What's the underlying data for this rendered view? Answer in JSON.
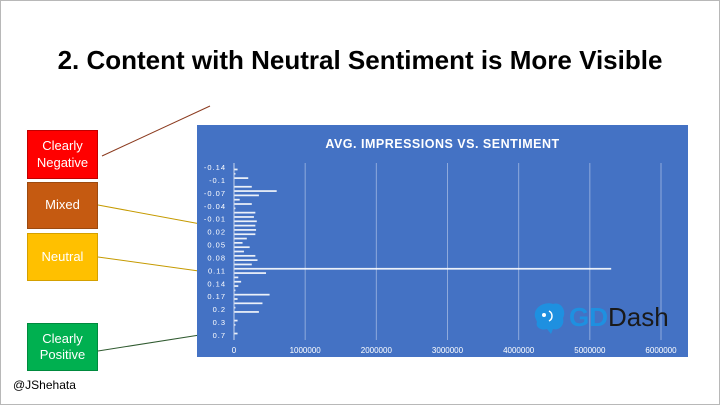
{
  "slide": {
    "title": "2. Content with Neutral Sentiment is More Visible",
    "handle": "@JShehata"
  },
  "categories": {
    "negative": "Clearly Negative",
    "mixed": "Mixed",
    "neutral": "Neutral",
    "positive": "Clearly Positive"
  },
  "colors": {
    "negative": "#ff0000",
    "mixed": "#c55a11",
    "neutral": "#ffc000",
    "positive": "#00b050",
    "chart_bg": "#4472c4"
  },
  "logo": {
    "icon": "brain-elephant-icon",
    "text_gd": "GD",
    "text_dash": "Dash"
  },
  "chart_data": {
    "type": "bar",
    "orientation": "horizontal",
    "title": "AVG. IMPRESSIONS VS. SENTIMENT",
    "xlabel": "",
    "ylabel": "",
    "xlim": [
      0,
      6000000
    ],
    "x_ticks": [
      "0",
      "1000000",
      "2000000",
      "3000000",
      "4000000",
      "5000000",
      "6000000"
    ],
    "grid": true,
    "tick_labels": [
      "-0.14",
      "-0.1",
      "-0.07",
      "-0.04",
      "-0.01",
      "0.02",
      "0.05",
      "0.08",
      "0.11",
      "0.14",
      "0.17",
      "0.2",
      "0.3",
      "0.7"
    ],
    "values": [
      0,
      50000,
      20000,
      200000,
      0,
      250000,
      600000,
      350000,
      80000,
      250000,
      20000,
      300000,
      280000,
      320000,
      300000,
      310000,
      300000,
      180000,
      120000,
      220000,
      140000,
      300000,
      330000,
      250000,
      5300000,
      450000,
      60000,
      100000,
      60000,
      20000,
      500000,
      50000,
      400000,
      20000,
      350000,
      0,
      50000,
      20000,
      0,
      50000,
      0
    ]
  }
}
